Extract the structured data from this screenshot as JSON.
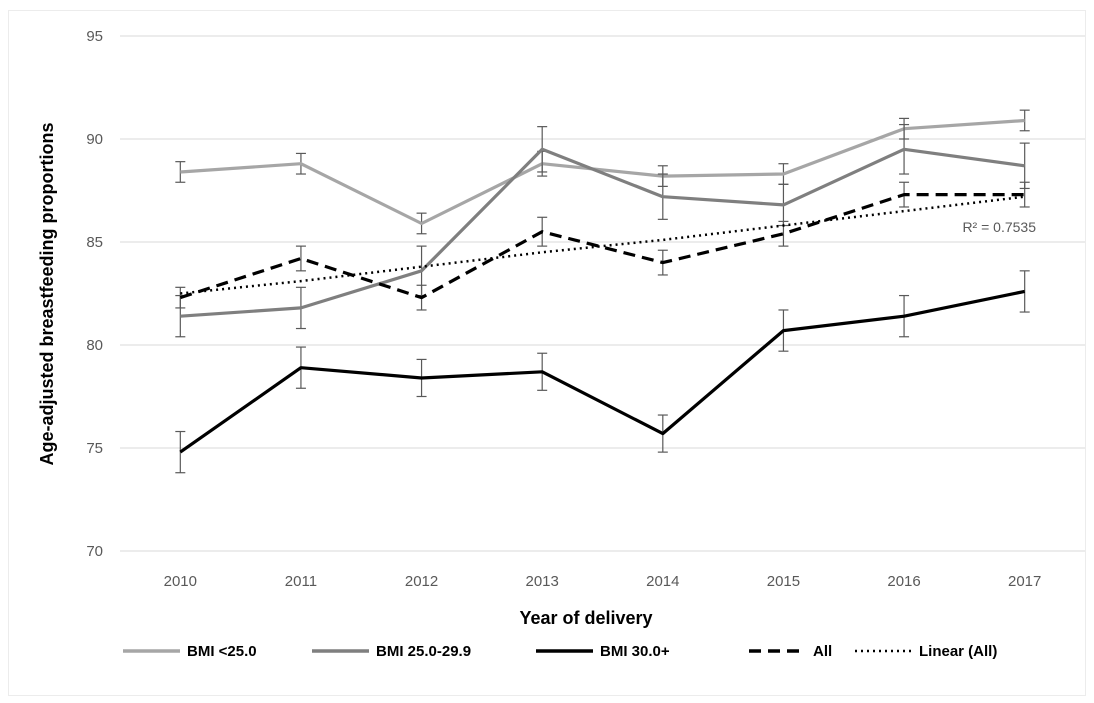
{
  "chart_data": {
    "type": "line",
    "title": "",
    "xlabel": "Year of delivery",
    "ylabel": "Age-adjusted breastfeeding proportions",
    "categories": [
      "2010",
      "2011",
      "2012",
      "2013",
      "2014",
      "2015",
      "2016",
      "2017"
    ],
    "ylim": [
      70,
      95
    ],
    "yticks": [
      70,
      75,
      80,
      85,
      90,
      95
    ],
    "grid": "horizontal",
    "legend_position": "bottom",
    "series": [
      {
        "name": "BMI <25.0",
        "color": "#a6a6a6",
        "style": "solid",
        "values": [
          88.4,
          88.8,
          85.9,
          88.8,
          88.2,
          88.3,
          90.5,
          90.9
        ],
        "err": [
          0.5,
          0.5,
          0.5,
          0.6,
          0.5,
          0.5,
          0.5,
          0.5
        ]
      },
      {
        "name": "BMI 25.0-29.9",
        "color": "#7f7f7f",
        "style": "solid",
        "values": [
          81.4,
          81.8,
          83.6,
          89.5,
          87.2,
          86.8,
          89.5,
          88.7
        ],
        "err": [
          1.0,
          1.0,
          1.2,
          1.1,
          1.1,
          1.0,
          1.2,
          1.1
        ]
      },
      {
        "name": "BMI 30.0+",
        "color": "#000000",
        "style": "solid",
        "values": [
          74.8,
          78.9,
          78.4,
          78.7,
          75.7,
          80.7,
          81.4,
          82.6
        ],
        "err": [
          1.0,
          1.0,
          0.9,
          0.9,
          0.9,
          1.0,
          1.0,
          1.0
        ]
      },
      {
        "name": "All",
        "color": "#000000",
        "style": "dashed",
        "values": [
          82.3,
          84.2,
          82.3,
          85.5,
          84.0,
          85.4,
          87.3,
          87.3
        ],
        "err": [
          0.5,
          0.6,
          0.6,
          0.7,
          0.6,
          0.6,
          0.6,
          0.6
        ]
      },
      {
        "name": "Linear (All)",
        "color": "#000000",
        "style": "dotted",
        "trendline_for": "All",
        "values": [
          82.5,
          83.1,
          83.8,
          84.5,
          85.1,
          85.8,
          86.5,
          87.2
        ],
        "r_squared_label": "R² = 0.7535"
      }
    ]
  }
}
